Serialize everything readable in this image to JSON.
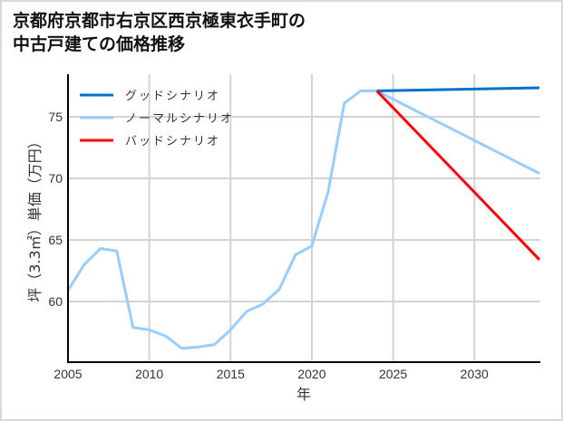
{
  "chart_data": {
    "type": "line",
    "title": "京都府京都市右京区西京極東衣手町の中古戸建ての価格推移",
    "title_lines": [
      "京都府京都市右京区西京極東衣手町の",
      "中古戸建ての価格推移"
    ],
    "xlabel": "年",
    "ylabel": "坪（3.3㎡）単価（万円）",
    "xlim": [
      2005,
      2034
    ],
    "ylim": [
      55.5,
      78.5
    ],
    "x_ticks": [
      2005,
      2010,
      2015,
      2020,
      2025,
      2030
    ],
    "y_ticks": [
      60,
      65,
      70,
      75
    ],
    "grid": true,
    "legend_position": "upper left",
    "series": [
      {
        "name": "グッドシナリオ",
        "color": "#0070cc",
        "x": [
          2024,
          2034
        ],
        "values": [
          77.1,
          77.35
        ]
      },
      {
        "name": "ノーマルシナリオ",
        "color": "#99ccff",
        "x": [
          2005,
          2006,
          2007,
          2008,
          2009,
          2010,
          2011,
          2012,
          2013,
          2014,
          2015,
          2016,
          2017,
          2018,
          2019,
          2020,
          2021,
          2022,
          2023,
          2024,
          2034
        ],
        "values": [
          60.9,
          63.0,
          64.3,
          64.1,
          57.9,
          57.7,
          57.2,
          56.2,
          56.3,
          56.5,
          57.7,
          59.2,
          59.8,
          61.0,
          63.8,
          64.5,
          68.9,
          76.1,
          77.1,
          77.1,
          70.4
        ]
      },
      {
        "name": "バッドシナリオ",
        "color": "#ff0000",
        "x": [
          2024,
          2034
        ],
        "values": [
          77.1,
          63.4
        ]
      }
    ]
  }
}
